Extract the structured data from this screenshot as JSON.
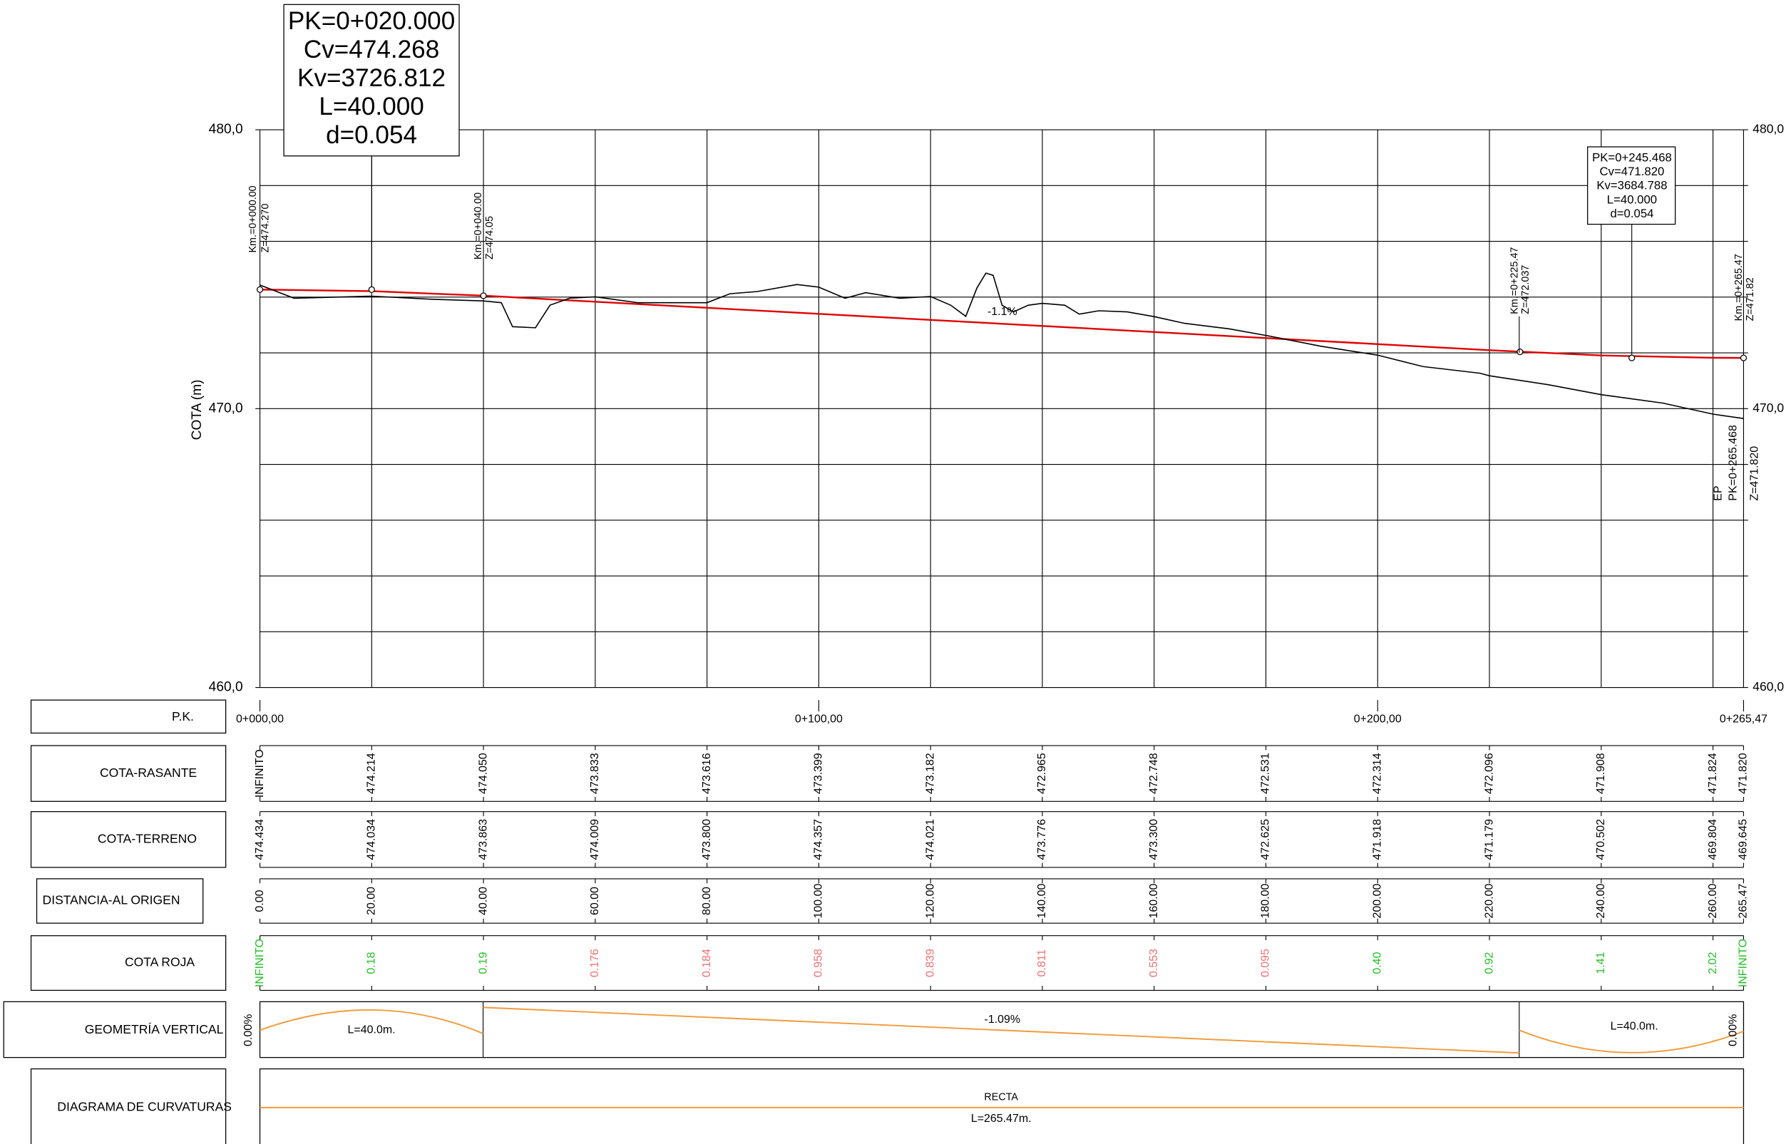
{
  "chart_data": {
    "type": "line",
    "y_label": "COTA (m)",
    "xlim": [
      0,
      265.47
    ],
    "ylim": [
      460,
      480
    ],
    "xticks": [
      {
        "value": 0,
        "label": "0+000,00"
      },
      {
        "value": 100,
        "label": "0+100,00"
      },
      {
        "value": 200,
        "label": "0+200,00"
      },
      {
        "value": 265.47,
        "label": "0+265,47"
      }
    ],
    "yticks": [
      {
        "value": 460,
        "label": "460,0"
      },
      {
        "value": 470,
        "label": "470,0"
      },
      {
        "value": 480,
        "label": "480,0"
      }
    ],
    "x_gridlines": [
      20,
      40,
      60,
      80,
      120,
      140,
      160,
      180,
      220,
      240,
      260
    ],
    "y_gridlines": [
      462,
      464,
      466,
      468,
      472,
      474,
      476,
      478
    ],
    "series": [
      {
        "color": "#e00000",
        "x": [
          0,
          20,
          40,
          60,
          80,
          100,
          120,
          140,
          160,
          180,
          200,
          220,
          240,
          260,
          265.47
        ],
        "values": [
          474.27,
          474.214,
          474.05,
          473.833,
          473.616,
          473.399,
          473.182,
          472.965,
          472.748,
          472.531,
          472.314,
          472.096,
          471.908,
          471.824,
          471.82
        ]
      },
      {
        "color": "#000000",
        "x": [
          0,
          6.1,
          20,
          31,
          40,
          43.2,
          45.2,
          49.3,
          51.9,
          55.4,
          60,
          67.6,
          80,
          84.1,
          89,
          96.1,
          100,
          104.7,
          108.4,
          114.5,
          120,
          123.6,
          126.3,
          128.3,
          129.9,
          131.2,
          132.8,
          134.8,
          137.5,
          140,
          144,
          146.6,
          150.1,
          155.2,
          160,
          165.4,
          173.5,
          180,
          189.8,
          200,
          208.1,
          218.3,
          220,
          230.5,
          240,
          251,
          260,
          265.47
        ],
        "values": [
          474.434,
          473.96,
          474.034,
          473.92,
          473.863,
          473.8,
          472.94,
          472.9,
          473.71,
          473.96,
          474.009,
          473.8,
          473.8,
          474.12,
          474.2,
          474.45,
          474.357,
          473.96,
          474.16,
          473.96,
          474.021,
          473.71,
          473.31,
          474.33,
          474.86,
          474.78,
          473.71,
          473.47,
          473.71,
          473.776,
          473.71,
          473.39,
          473.51,
          473.47,
          473.3,
          473.06,
          472.86,
          472.625,
          472.24,
          471.918,
          471.51,
          471.27,
          471.179,
          470.86,
          470.502,
          470.2,
          469.804,
          469.645
        ]
      }
    ],
    "vertices": {
      "x": [
        0,
        20,
        40,
        225.47,
        245.468,
        265.47
      ],
      "values": [
        474.27,
        474.268,
        474.05,
        472.037,
        471.82,
        471.82
      ]
    },
    "grade_label": "-1.1%",
    "vertex_boxes": [
      [
        "PK=0+020.000",
        "Cv=474.268",
        "Kv=3726.812",
        "L=40.000",
        "d=0.054"
      ],
      [
        "PK=0+245.468",
        "Cv=471.820",
        "Kv=3684.788",
        "L=40.000",
        "d=0.054"
      ]
    ],
    "station_labels": [
      [
        "Km.=0+000.00",
        "Z=474.270"
      ],
      [
        "Km.=0+040.00",
        "Z=474.05"
      ],
      [
        "Km.=0+225.47",
        "Z=472.037"
      ],
      [
        "Km.=0+265.47",
        "Z=471.82"
      ]
    ],
    "end_label": [
      "EP",
      "PK=0+265.468",
      "Z=471.820"
    ]
  },
  "profile_table": {
    "stations": [
      0,
      20,
      40,
      60,
      80,
      100,
      120,
      140,
      160,
      180,
      200,
      220,
      240,
      260,
      265.47
    ],
    "rows": [
      {
        "label": "P.K."
      },
      {
        "label": "COTA-RASANTE",
        "values": [
          "INFINITO",
          "474.214",
          "474.050",
          "473.833",
          "473.616",
          "473.399",
          "473.182",
          "472.965",
          "472.748",
          "472.531",
          "472.314",
          "472.096",
          "471.908",
          "471.824",
          "471.820"
        ]
      },
      {
        "label": "COTA-TERRENO",
        "values": [
          "474.434",
          "474.034",
          "473.863",
          "474.009",
          "473.800",
          "474.357",
          "474.021",
          "473.776",
          "473.300",
          "472.625",
          "471.918",
          "471.179",
          "470.502",
          "469.804",
          "469.645"
        ]
      },
      {
        "label": "DISTANCIA-AL ORIGEN",
        "values": [
          "0.00",
          "20.00",
          "40.00",
          "60.00",
          "80.00",
          "100.00",
          "120.00",
          "140.00",
          "160.00",
          "180.00",
          "200.00",
          "220.00",
          "240.00",
          "260.00",
          "265.47"
        ]
      },
      {
        "label": "COTA ROJA",
        "values": [
          "INFINITO",
          "0.18",
          "0.19",
          "0.176",
          "0.184",
          "0.958",
          "0.839",
          "0.811",
          "0.553",
          "0.095",
          "0.40",
          "0.92",
          "1.41",
          "2.02",
          "INFINITO"
        ],
        "colors": [
          "#22c022",
          "#22c022",
          "#22c022",
          "#f07070",
          "#f07070",
          "#f07070",
          "#f07070",
          "#f07070",
          "#f07070",
          "#f07070",
          "#22c022",
          "#22c022",
          "#22c022",
          "#22c022",
          "#22c022"
        ]
      }
    ],
    "geometry": {
      "label": "GEOMETRÍA VERTICAL",
      "texts": [
        "0.00%",
        "L=40.0m.",
        "-1.09%",
        "L=40.0m.",
        "0.00%"
      ]
    },
    "curvature": {
      "label": "DIAGRAMA DE CURVATURAS",
      "texts": [
        "RECTA",
        "L=265.47m."
      ]
    }
  }
}
